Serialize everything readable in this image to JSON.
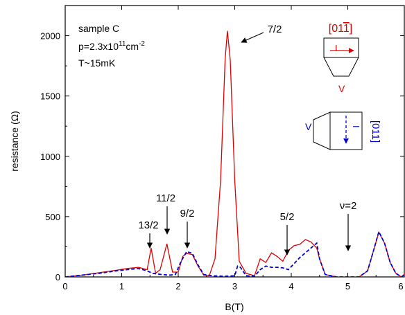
{
  "chart_data": {
    "type": "line",
    "title": "",
    "xlabel": "B(T)",
    "ylabel": "resistance (Ω)",
    "xlim": [
      0,
      6
    ],
    "ylim": [
      0,
      2250
    ],
    "x_ticks": [
      0,
      1,
      2,
      3,
      4,
      5,
      6
    ],
    "y_ticks": [
      0,
      500,
      1000,
      1500,
      2000
    ],
    "x_tick_labels": [
      "0",
      "1",
      "2",
      "3",
      "4",
      "5",
      "6"
    ],
    "y_tick_labels": [
      "0",
      "500",
      "1000",
      "1500",
      "2000"
    ],
    "grid": false,
    "info_lines": {
      "sample": "sample C",
      "density_prefix": "p=2.3x10",
      "density_exp": "11",
      "density_unit": "cm",
      "density_unit_exp": "-2",
      "temperature": "T~15mK"
    },
    "annotations": [
      {
        "label": "13/2",
        "x": 1.52
      },
      {
        "label": "11/2",
        "x": 1.8
      },
      {
        "label": "9/2",
        "x": 2.15
      },
      {
        "label": "7/2",
        "x": 2.9
      },
      {
        "label": "5/2",
        "x": 3.92
      },
      {
        "label": "ν=2",
        "x": 5.0
      }
    ],
    "insets": {
      "red_direction": "[01",
      "red_direction_bar": "1",
      "red_direction_close": "]",
      "red_current": "I",
      "red_voltage": "V",
      "blue_direction": "[011]",
      "blue_current": "I",
      "blue_voltage": "V"
    },
    "series": [
      {
        "name": "",
        "color": "#e00000",
        "style": "solid",
        "points": [
          [
            0,
            0
          ],
          [
            0.3,
            15
          ],
          [
            0.6,
            35
          ],
          [
            0.9,
            55
          ],
          [
            1.1,
            70
          ],
          [
            1.3,
            80
          ],
          [
            1.45,
            60
          ],
          [
            1.52,
            240
          ],
          [
            1.6,
            30
          ],
          [
            1.68,
            60
          ],
          [
            1.8,
            275
          ],
          [
            1.9,
            40
          ],
          [
            2.0,
            40
          ],
          [
            2.08,
            170
          ],
          [
            2.15,
            195
          ],
          [
            2.25,
            185
          ],
          [
            2.35,
            90
          ],
          [
            2.45,
            15
          ],
          [
            2.55,
            10
          ],
          [
            2.65,
            150
          ],
          [
            2.75,
            800
          ],
          [
            2.83,
            1800
          ],
          [
            2.87,
            2040
          ],
          [
            2.92,
            1800
          ],
          [
            3.0,
            800
          ],
          [
            3.08,
            130
          ],
          [
            3.2,
            30
          ],
          [
            3.35,
            10
          ],
          [
            3.45,
            150
          ],
          [
            3.55,
            120
          ],
          [
            3.65,
            200
          ],
          [
            3.75,
            170
          ],
          [
            3.85,
            130
          ],
          [
            3.95,
            220
          ],
          [
            4.05,
            260
          ],
          [
            4.15,
            270
          ],
          [
            4.25,
            310
          ],
          [
            4.35,
            290
          ],
          [
            4.45,
            240
          ],
          [
            4.5,
            150
          ],
          [
            4.6,
            20
          ],
          [
            4.8,
            0
          ],
          [
            5.0,
            0
          ],
          [
            5.2,
            0
          ],
          [
            5.35,
            50
          ],
          [
            5.45,
            210
          ],
          [
            5.55,
            370
          ],
          [
            5.65,
            280
          ],
          [
            5.75,
            120
          ],
          [
            5.85,
            30
          ],
          [
            5.95,
            0
          ],
          [
            6.0,
            20
          ]
        ]
      },
      {
        "name": "",
        "color": "#0000cc",
        "style": "dashed",
        "points": [
          [
            0,
            0
          ],
          [
            0.3,
            15
          ],
          [
            0.6,
            30
          ],
          [
            0.9,
            50
          ],
          [
            1.1,
            60
          ],
          [
            1.3,
            70
          ],
          [
            1.45,
            50
          ],
          [
            1.55,
            30
          ],
          [
            1.7,
            20
          ],
          [
            1.85,
            15
          ],
          [
            1.95,
            20
          ],
          [
            2.05,
            130
          ],
          [
            2.15,
            210
          ],
          [
            2.25,
            195
          ],
          [
            2.35,
            100
          ],
          [
            2.45,
            20
          ],
          [
            2.6,
            10
          ],
          [
            2.8,
            5
          ],
          [
            3.0,
            10
          ],
          [
            3.05,
            90
          ],
          [
            3.1,
            80
          ],
          [
            3.2,
            10
          ],
          [
            3.35,
            5
          ],
          [
            3.45,
            60
          ],
          [
            3.55,
            90
          ],
          [
            3.65,
            80
          ],
          [
            3.75,
            80
          ],
          [
            3.85,
            75
          ],
          [
            3.95,
            60
          ],
          [
            4.05,
            110
          ],
          [
            4.15,
            160
          ],
          [
            4.25,
            200
          ],
          [
            4.35,
            240
          ],
          [
            4.45,
            280
          ],
          [
            4.5,
            150
          ],
          [
            4.6,
            20
          ],
          [
            4.8,
            0
          ],
          [
            5.0,
            0
          ],
          [
            5.2,
            0
          ],
          [
            5.35,
            50
          ],
          [
            5.45,
            210
          ],
          [
            5.55,
            375
          ],
          [
            5.65,
            280
          ],
          [
            5.75,
            120
          ],
          [
            5.85,
            30
          ],
          [
            5.95,
            0
          ],
          [
            6.0,
            20
          ]
        ]
      }
    ]
  }
}
